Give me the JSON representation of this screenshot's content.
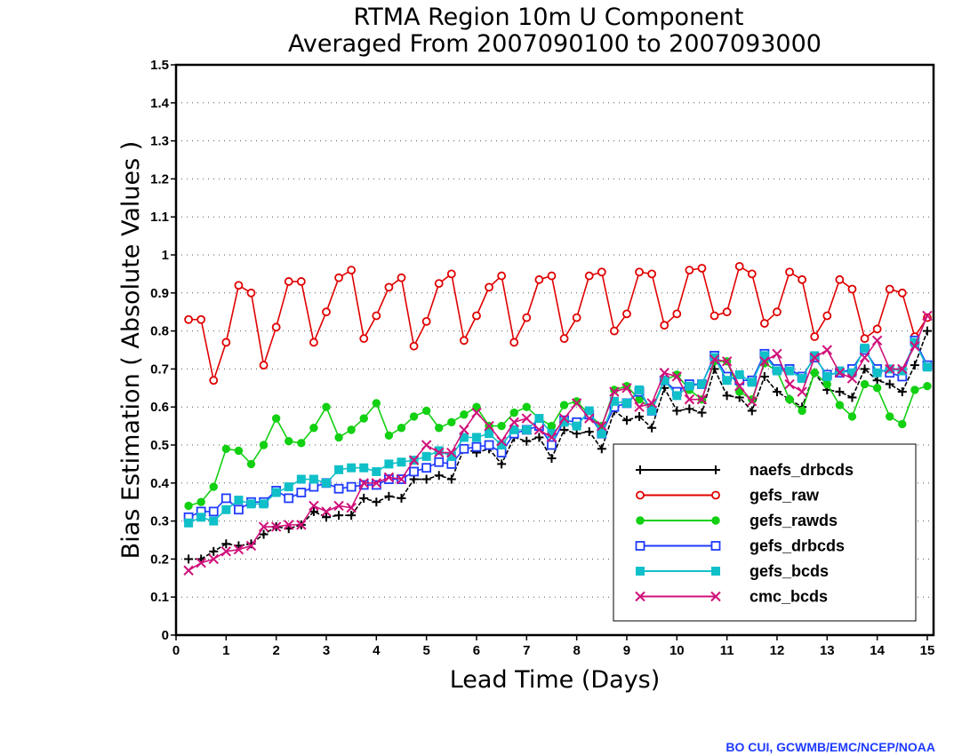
{
  "chart_data": {
    "type": "line",
    "title": "RTMA Region 10m U Component",
    "subtitle": "Averaged From 2007090100 to 2007093000",
    "xlabel": "Lead Time (Days)",
    "ylabel": "Bias Estimation ( Absolute Values )",
    "xlim": [
      0,
      15.125
    ],
    "ylim": [
      0,
      1.5
    ],
    "x_ticks": [
      "0",
      "1",
      "2",
      "3",
      "4",
      "5",
      "6",
      "7",
      "8",
      "9",
      "10",
      "11",
      "12",
      "13",
      "14",
      "15"
    ],
    "y_ticks": [
      "0",
      "0.1",
      "0.2",
      "0.3",
      "0.4",
      "0.5",
      "0.6",
      "0.7",
      "0.8",
      "0.9",
      "1",
      "1.1",
      "1.2",
      "1.3",
      "1.4",
      "1.5"
    ],
    "grid": "horizontal dotted",
    "legend_position": "lower-right",
    "x": [
      0.25,
      0.5,
      0.75,
      1,
      1.25,
      1.5,
      1.75,
      2,
      2.25,
      2.5,
      2.75,
      3,
      3.25,
      3.5,
      3.75,
      4,
      4.25,
      4.5,
      4.75,
      5,
      5.25,
      5.5,
      5.75,
      6,
      6.25,
      6.5,
      6.75,
      7,
      7.25,
      7.5,
      7.75,
      8,
      8.25,
      8.5,
      8.75,
      9,
      9.25,
      9.5,
      9.75,
      10,
      10.25,
      10.5,
      10.75,
      11,
      11.25,
      11.5,
      11.75,
      12,
      12.25,
      12.5,
      12.75,
      13,
      13.25,
      13.5,
      13.75,
      14,
      14.25,
      14.5,
      14.75,
      15
    ],
    "series": [
      {
        "name": "naefs_drbcds",
        "color": "#000000",
        "marker": "plus",
        "line": "dashed",
        "values": [
          0.2,
          0.2,
          0.22,
          0.24,
          0.235,
          0.24,
          0.265,
          0.285,
          0.28,
          0.29,
          0.325,
          0.31,
          0.315,
          0.315,
          0.36,
          0.35,
          0.365,
          0.36,
          0.41,
          0.41,
          0.42,
          0.41,
          0.49,
          0.48,
          0.49,
          0.45,
          0.52,
          0.51,
          0.52,
          0.465,
          0.54,
          0.53,
          0.535,
          0.49,
          0.59,
          0.565,
          0.575,
          0.545,
          0.65,
          0.59,
          0.595,
          0.585,
          0.7,
          0.63,
          0.625,
          0.59,
          0.68,
          0.64,
          0.62,
          0.6,
          0.69,
          0.645,
          0.64,
          0.625,
          0.7,
          0.67,
          0.66,
          0.64,
          0.71,
          0.8
        ]
      },
      {
        "name": "gefs_raw",
        "color": "#e00000",
        "marker": "circle-open",
        "line": "solid",
        "values": [
          0.83,
          0.83,
          0.67,
          0.77,
          0.92,
          0.9,
          0.71,
          0.81,
          0.93,
          0.93,
          0.77,
          0.85,
          0.94,
          0.96,
          0.78,
          0.84,
          0.915,
          0.94,
          0.76,
          0.825,
          0.925,
          0.95,
          0.775,
          0.84,
          0.915,
          0.945,
          0.77,
          0.835,
          0.935,
          0.945,
          0.78,
          0.835,
          0.945,
          0.955,
          0.8,
          0.845,
          0.955,
          0.95,
          0.815,
          0.845,
          0.96,
          0.965,
          0.84,
          0.85,
          0.97,
          0.95,
          0.82,
          0.85,
          0.955,
          0.935,
          0.785,
          0.84,
          0.935,
          0.91,
          0.78,
          0.805,
          0.91,
          0.9,
          0.785,
          0.835
        ]
      },
      {
        "name": "gefs_rawds",
        "color": "#12d012",
        "marker": "circle-filled",
        "line": "solid",
        "values": [
          0.34,
          0.35,
          0.39,
          0.49,
          0.485,
          0.45,
          0.5,
          0.57,
          0.51,
          0.505,
          0.545,
          0.6,
          0.52,
          0.54,
          0.57,
          0.61,
          0.525,
          0.545,
          0.575,
          0.59,
          0.545,
          0.56,
          0.58,
          0.6,
          0.55,
          0.55,
          0.585,
          0.6,
          0.57,
          0.55,
          0.605,
          0.615,
          0.58,
          0.55,
          0.645,
          0.655,
          0.62,
          0.595,
          0.67,
          0.685,
          0.645,
          0.62,
          0.72,
          0.72,
          0.64,
          0.62,
          0.715,
          0.695,
          0.62,
          0.59,
          0.69,
          0.66,
          0.605,
          0.575,
          0.66,
          0.65,
          0.575,
          0.555,
          0.645,
          0.655
        ]
      },
      {
        "name": "gefs_drbcds",
        "color": "#1f3bff",
        "marker": "square-open",
        "line": "solid",
        "values": [
          0.31,
          0.325,
          0.325,
          0.36,
          0.33,
          0.35,
          0.35,
          0.38,
          0.36,
          0.375,
          0.39,
          0.4,
          0.385,
          0.39,
          0.395,
          0.395,
          0.41,
          0.41,
          0.43,
          0.44,
          0.455,
          0.45,
          0.49,
          0.495,
          0.5,
          0.48,
          0.53,
          0.54,
          0.55,
          0.5,
          0.565,
          0.56,
          0.58,
          0.53,
          0.6,
          0.61,
          0.64,
          0.59,
          0.67,
          0.64,
          0.66,
          0.66,
          0.735,
          0.68,
          0.67,
          0.67,
          0.74,
          0.7,
          0.7,
          0.68,
          0.73,
          0.685,
          0.69,
          0.7,
          0.75,
          0.7,
          0.69,
          0.68,
          0.775,
          0.71
        ]
      },
      {
        "name": "gefs_bcds",
        "color": "#10c0c8",
        "marker": "square-filled",
        "line": "solid",
        "values": [
          0.295,
          0.31,
          0.3,
          0.33,
          0.355,
          0.345,
          0.345,
          0.375,
          0.39,
          0.41,
          0.41,
          0.4,
          0.435,
          0.44,
          0.44,
          0.43,
          0.45,
          0.455,
          0.46,
          0.47,
          0.485,
          0.47,
          0.52,
          0.52,
          0.53,
          0.5,
          0.54,
          0.54,
          0.57,
          0.53,
          0.56,
          0.55,
          0.59,
          0.53,
          0.615,
          0.61,
          0.645,
          0.59,
          0.67,
          0.63,
          0.655,
          0.66,
          0.73,
          0.67,
          0.685,
          0.665,
          0.735,
          0.695,
          0.695,
          0.675,
          0.735,
          0.68,
          0.695,
          0.69,
          0.755,
          0.69,
          0.7,
          0.695,
          0.77,
          0.705
        ]
      },
      {
        "name": "cmc_bcds",
        "color": "#d0107a",
        "marker": "x",
        "line": "solid",
        "values": [
          0.17,
          0.19,
          0.2,
          0.22,
          0.225,
          0.235,
          0.285,
          0.285,
          0.29,
          0.29,
          0.34,
          0.325,
          0.34,
          0.335,
          0.4,
          0.4,
          0.415,
          0.41,
          0.46,
          0.5,
          0.48,
          0.48,
          0.54,
          0.585,
          0.55,
          0.51,
          0.56,
          0.57,
          0.54,
          0.52,
          0.57,
          0.61,
          0.57,
          0.55,
          0.64,
          0.65,
          0.6,
          0.61,
          0.69,
          0.68,
          0.62,
          0.62,
          0.725,
          0.72,
          0.655,
          0.615,
          0.72,
          0.74,
          0.66,
          0.64,
          0.73,
          0.75,
          0.69,
          0.675,
          0.73,
          0.775,
          0.7,
          0.7,
          0.76,
          0.84
        ]
      }
    ]
  },
  "credit": "BO CUI, GCWMB/EMC/NCEP/NOAA"
}
